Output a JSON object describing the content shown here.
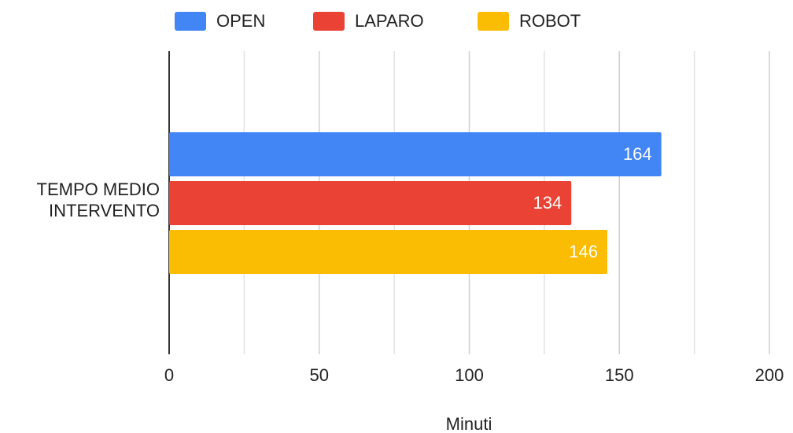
{
  "chart_data": {
    "type": "hbar",
    "categories": [
      "TEMPO MEDIO INTERVENTO"
    ],
    "series": [
      {
        "name": "OPEN",
        "color": "#4285f4",
        "values": [
          164
        ]
      },
      {
        "name": "LAPARO",
        "color": "#ea4335",
        "values": [
          134
        ]
      },
      {
        "name": "ROBOT",
        "color": "#fbbc04",
        "values": [
          146
        ]
      }
    ],
    "x_label": "Minuti",
    "xlim": [
      0,
      200
    ],
    "xticks": [
      0,
      50,
      100,
      150,
      200
    ],
    "minor_xticks": [
      25,
      75,
      125,
      175
    ],
    "grid": true,
    "legend": "top"
  }
}
